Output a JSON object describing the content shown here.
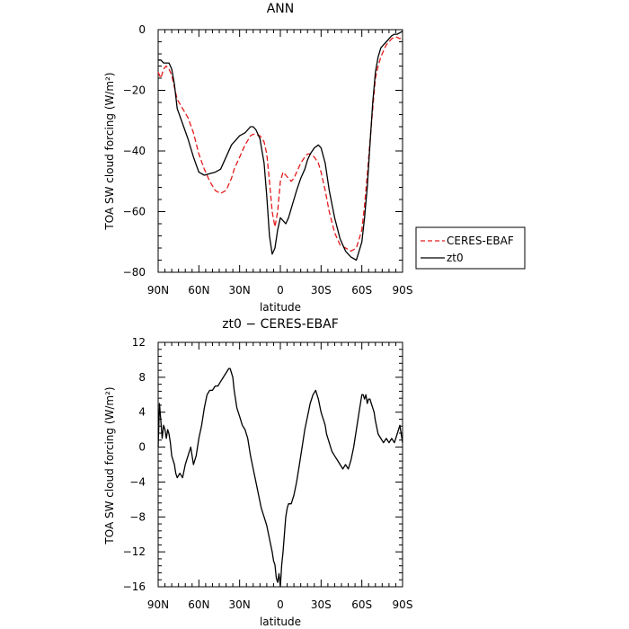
{
  "chart_data": [
    {
      "type": "line",
      "title": "ANN",
      "xlabel": "latitude",
      "ylabel": "TOA SW cloud forcing (W/m²)",
      "xlim": [
        90,
        -90
      ],
      "ylim": [
        -80,
        0
      ],
      "xticks": [
        90,
        60,
        30,
        0,
        -30,
        -60,
        -90
      ],
      "xtick_labels": [
        "90N",
        "60N",
        "30N",
        "0",
        "30S",
        "60S",
        "90S"
      ],
      "yticks": [
        0,
        -20,
        -40,
        -60,
        -80
      ],
      "ytick_labels": [
        "0",
        "−20",
        "−40",
        "−60",
        "−80"
      ],
      "legend_position": "outside-right",
      "series": [
        {
          "name": "CERES-EBAF",
          "color": "#e41a1c",
          "style": "dashed",
          "x": [
            90,
            88,
            86,
            84,
            82,
            80,
            78,
            76,
            72,
            68,
            64,
            60,
            56,
            52,
            48,
            44,
            40,
            36,
            34,
            30,
            26,
            22,
            20,
            18,
            15,
            12,
            10,
            8,
            6,
            4,
            2,
            0,
            -2,
            -4,
            -6,
            -8,
            -10,
            -12,
            -15,
            -18,
            -20,
            -22,
            -25,
            -28,
            -30,
            -33,
            -36,
            -40,
            -44,
            -48,
            -52,
            -56,
            -60,
            -62,
            -64,
            -66,
            -68,
            -70,
            -72,
            -74,
            -76,
            -78,
            -80,
            -82,
            -84,
            -86,
            -88,
            -90
          ],
          "y": [
            -14,
            -16,
            -13,
            -12,
            -13,
            -15,
            -19,
            -23,
            -26,
            -29,
            -34,
            -41,
            -46,
            -50,
            -53,
            -54,
            -53,
            -49,
            -46,
            -42,
            -38,
            -35,
            -34.5,
            -34.5,
            -35,
            -37,
            -41,
            -50,
            -60,
            -65,
            -60,
            -50,
            -47,
            -48,
            -49,
            -50,
            -49,
            -47,
            -44,
            -42,
            -41,
            -41,
            -42,
            -44,
            -47,
            -53,
            -60,
            -67,
            -71,
            -72,
            -73,
            -72,
            -66,
            -58,
            -48,
            -37,
            -26,
            -16,
            -12,
            -9,
            -7,
            -5,
            -4,
            -3,
            -2.5,
            -2.5,
            -3,
            -2
          ]
        },
        {
          "name": "zt0",
          "color": "#000000",
          "style": "solid",
          "x": [
            90,
            88,
            86,
            84,
            82,
            80,
            78,
            76,
            72,
            68,
            64,
            60,
            56,
            52,
            48,
            44,
            40,
            36,
            34,
            30,
            26,
            22,
            20,
            18,
            15,
            12,
            10,
            8,
            6,
            4,
            2,
            0,
            -2,
            -4,
            -6,
            -8,
            -10,
            -12,
            -15,
            -18,
            -20,
            -22,
            -25,
            -28,
            -30,
            -33,
            -36,
            -40,
            -44,
            -48,
            -52,
            -56,
            -60,
            -62,
            -64,
            -66,
            -68,
            -70,
            -72,
            -74,
            -76,
            -78,
            -80,
            -82,
            -84,
            -86,
            -88,
            -90
          ],
          "y": [
            -10,
            -10,
            -11,
            -11,
            -11,
            -13,
            -18,
            -26,
            -31,
            -36,
            -42,
            -47,
            -48,
            -47.5,
            -47,
            -46,
            -42,
            -38,
            -37,
            -35,
            -34,
            -32,
            -32,
            -33,
            -36,
            -44,
            -55,
            -68,
            -74,
            -72,
            -66,
            -62,
            -63,
            -64,
            -62,
            -59,
            -56,
            -53,
            -49,
            -46,
            -43,
            -41,
            -39,
            -38,
            -39,
            -44,
            -53,
            -62,
            -69,
            -73,
            -75,
            -76,
            -70,
            -62,
            -52,
            -38,
            -24,
            -14,
            -9,
            -6,
            -5,
            -4,
            -3,
            -2,
            -1.5,
            -1.5,
            -1,
            -0.5
          ]
        }
      ]
    },
    {
      "type": "line",
      "title": "zt0 − CERES-EBAF",
      "xlabel": "latitude",
      "ylabel": "TOA SW cloud forcing (W/m²)",
      "xlim": [
        90,
        -90
      ],
      "ylim": [
        -16,
        12
      ],
      "xticks": [
        90,
        60,
        30,
        0,
        -30,
        -60,
        -90
      ],
      "xtick_labels": [
        "90N",
        "60N",
        "30N",
        "0",
        "30S",
        "60S",
        "90S"
      ],
      "yticks": [
        12,
        8,
        4,
        0,
        -4,
        -8,
        -12,
        -16
      ],
      "ytick_labels": [
        "12",
        "8",
        "4",
        "0",
        "−4",
        "−8",
        "−12",
        "−16"
      ],
      "series": [
        {
          "color": "#000000",
          "style": "solid",
          "x": [
            90,
            89,
            88,
            87,
            86,
            85,
            84,
            83,
            82,
            81,
            80,
            79,
            78,
            77,
            76,
            74,
            72,
            70,
            68,
            66,
            64,
            63,
            62,
            61,
            60,
            58,
            56,
            54,
            52,
            50,
            48,
            46,
            44,
            42,
            40,
            38,
            37,
            36,
            35,
            34,
            33,
            32,
            30,
            28,
            26,
            24,
            22,
            20,
            18,
            16,
            14,
            12,
            10,
            8,
            6,
            5,
            4,
            3,
            2,
            1,
            0,
            -1,
            -2,
            -3,
            -4,
            -5,
            -6,
            -7,
            -8,
            -10,
            -12,
            -14,
            -16,
            -18,
            -20,
            -22,
            -24,
            -26,
            -28,
            -30,
            -31,
            -32,
            -33,
            -34,
            -36,
            -38,
            -40,
            -42,
            -44,
            -46,
            -48,
            -50,
            -52,
            -54,
            -56,
            -58,
            -60,
            -61,
            -62,
            -63,
            -64,
            -65,
            -66,
            -67,
            -68,
            -69,
            -70,
            -72,
            -74,
            -76,
            -78,
            -80,
            -82,
            -84,
            -86,
            -88,
            -89,
            -90
          ],
          "y": [
            0,
            5,
            3,
            1,
            2.5,
            2,
            1,
            2,
            1.5,
            0.5,
            -1,
            -1.5,
            -2,
            -3,
            -3.5,
            -3,
            -3.5,
            -2,
            -1,
            0,
            -2,
            -1.5,
            -1,
            0,
            1,
            2.5,
            4.5,
            6,
            6.5,
            6.5,
            7,
            7,
            7.5,
            8,
            8.5,
            9,
            9,
            8.5,
            8,
            6.5,
            5.5,
            4.5,
            3.5,
            2.5,
            2,
            1,
            -1,
            -2.5,
            -4,
            -5.5,
            -7,
            -8,
            -9,
            -10.5,
            -12,
            -13,
            -13.5,
            -15,
            -15.5,
            -14.5,
            -16,
            -13.5,
            -12,
            -10,
            -8,
            -7,
            -6.5,
            -6.5,
            -6.5,
            -5.5,
            -4,
            -2,
            0,
            2,
            3.5,
            5,
            6,
            6.5,
            5.5,
            4,
            3.5,
            3,
            2.5,
            1.5,
            0.5,
            -0.5,
            -1,
            -1.5,
            -2,
            -2.5,
            -2,
            -2.5,
            -1.5,
            0,
            2,
            4,
            6,
            6,
            5.5,
            6,
            5,
            5.5,
            5.5,
            5,
            4.5,
            4,
            3,
            1.5,
            1,
            0.5,
            1,
            0.5,
            1,
            0.5,
            1.5,
            2.5,
            1.5,
            0.5
          ]
        }
      ]
    }
  ]
}
